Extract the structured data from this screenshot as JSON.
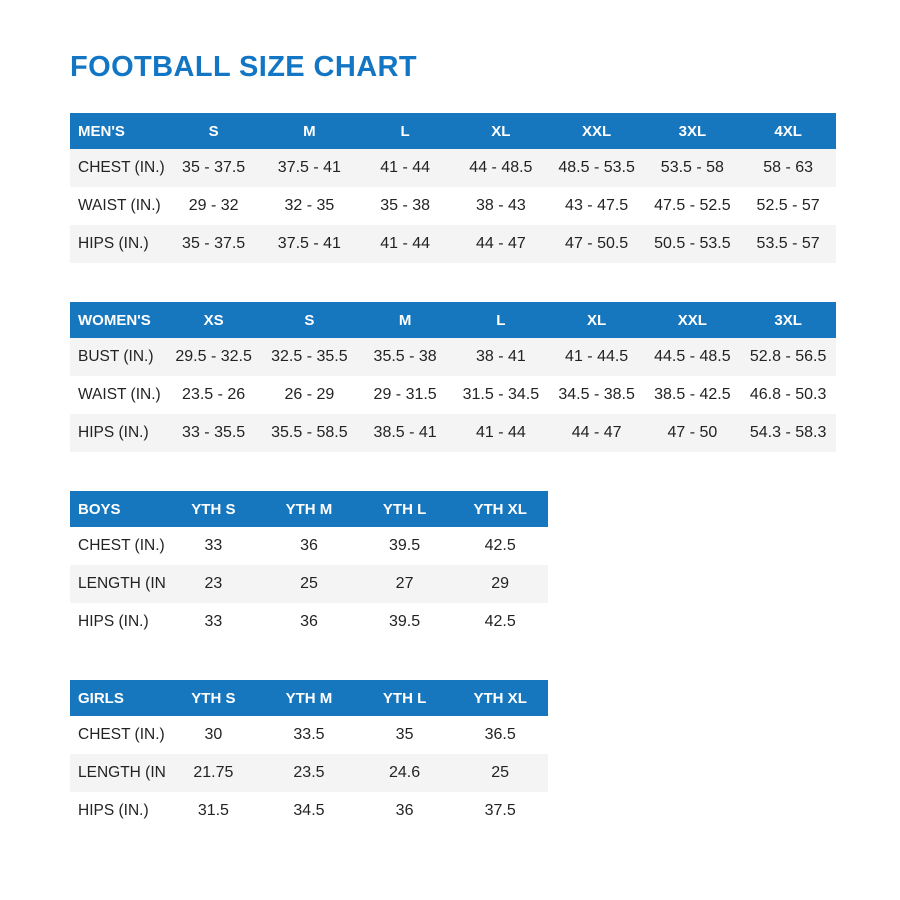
{
  "title": "FOOTBALL SIZE CHART",
  "colors": {
    "title_text": "#1276C4",
    "header_bg": "#1777BE",
    "header_text": "#FFFFFF",
    "shaded_row_bg": "#F4F4F4",
    "body_text": "#232323"
  },
  "tables": [
    {
      "name": "MEN'S",
      "size": "wide",
      "columns": [
        "S",
        "M",
        "L",
        "XL",
        "XXL",
        "3XL",
        "4XL"
      ],
      "rows": [
        {
          "label": "CHEST (IN.)",
          "shaded": true,
          "values": [
            "35 - 37.5",
            "37.5 - 41",
            "41 - 44",
            "44 - 48.5",
            "48.5 - 53.5",
            "53.5 - 58",
            "58 - 63"
          ]
        },
        {
          "label": "WAIST (IN.)",
          "shaded": false,
          "values": [
            "29 - 32",
            "32 - 35",
            "35 - 38",
            "38 - 43",
            "43 - 47.5",
            "47.5 - 52.5",
            "52.5 - 57"
          ]
        },
        {
          "label": "HIPS (IN.)",
          "shaded": true,
          "values": [
            "35 - 37.5",
            "37.5 - 41",
            "41 - 44",
            "44 - 47",
            "47 - 50.5",
            "50.5 - 53.5",
            "53.5 - 57"
          ]
        }
      ]
    },
    {
      "name": "WOMEN'S",
      "size": "wide",
      "columns": [
        "XS",
        "S",
        "M",
        "L",
        "XL",
        "XXL",
        "3XL"
      ],
      "rows": [
        {
          "label": "BUST (IN.)",
          "shaded": true,
          "values": [
            "29.5 - 32.5",
            "32.5 - 35.5",
            "35.5 - 38",
            "38 - 41",
            "41 - 44.5",
            "44.5 - 48.5",
            "52.8 - 56.5"
          ]
        },
        {
          "label": "WAIST (IN.)",
          "shaded": false,
          "values": [
            "23.5 - 26",
            "26 - 29",
            "29 - 31.5",
            "31.5 - 34.5",
            "34.5 - 38.5",
            "38.5 - 42.5",
            "46.8 - 50.3"
          ]
        },
        {
          "label": "HIPS (IN.)",
          "shaded": true,
          "values": [
            "33 - 35.5",
            "35.5 - 58.5",
            "38.5 - 41",
            "41 - 44",
            "44 - 47",
            "47 - 50",
            "54.3 - 58.3"
          ]
        }
      ]
    },
    {
      "name": "BOYS",
      "size": "narrow",
      "columns": [
        "YTH S",
        "YTH M",
        "YTH L",
        "YTH XL"
      ],
      "rows": [
        {
          "label": "CHEST (IN.)",
          "shaded": false,
          "values": [
            "33",
            "36",
            "39.5",
            "42.5"
          ]
        },
        {
          "label": "LENGTH (IN.)",
          "shaded": true,
          "values": [
            "23",
            "25",
            "27",
            "29"
          ]
        },
        {
          "label": "HIPS (IN.)",
          "shaded": false,
          "values": [
            "33",
            "36",
            "39.5",
            "42.5"
          ]
        }
      ]
    },
    {
      "name": "GIRLS",
      "size": "narrow",
      "columns": [
        "YTH S",
        "YTH M",
        "YTH L",
        "YTH XL"
      ],
      "rows": [
        {
          "label": "CHEST (IN.)",
          "shaded": false,
          "values": [
            "30",
            "33.5",
            "35",
            "36.5"
          ]
        },
        {
          "label": "LENGTH (IN.)",
          "shaded": true,
          "values": [
            "21.75",
            "23.5",
            "24.6",
            "25"
          ]
        },
        {
          "label": "HIPS (IN.)",
          "shaded": false,
          "values": [
            "31.5",
            "34.5",
            "36",
            "37.5"
          ]
        }
      ]
    }
  ]
}
